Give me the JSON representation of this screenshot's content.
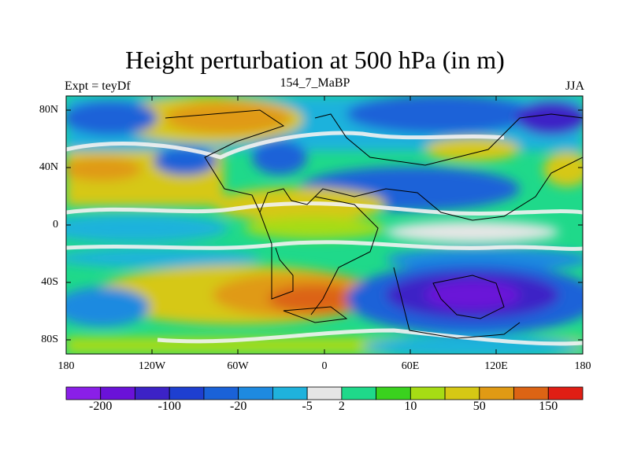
{
  "title": "Height perturbation at 500 hPa (in m)",
  "left_label": "Expt = teyDf",
  "center_label": "154_7_MaBP",
  "right_label": "JJA",
  "y_ticks": [
    "80N",
    "40N",
    "0",
    "40S",
    "80S"
  ],
  "x_ticks": [
    "180",
    "120W",
    "60W",
    "0",
    "60E",
    "120E",
    "180"
  ],
  "colorbar": {
    "colors": [
      "#8a1fe8",
      "#6a12d8",
      "#3c22c6",
      "#1e3fd0",
      "#1a62d8",
      "#1e8ae0",
      "#1fb2dc",
      "#e6e6e6",
      "#1fd98a",
      "#3ad21e",
      "#a6dc14",
      "#d6c814",
      "#e09a14",
      "#dc6414",
      "#e01e14"
    ],
    "labels": [
      {
        "text": "-200",
        "boundary": 1
      },
      {
        "text": "-100",
        "boundary": 3
      },
      {
        "text": "-20",
        "boundary": 5
      },
      {
        "text": "-5",
        "boundary": 7
      },
      {
        "text": "2",
        "boundary": 8
      },
      {
        "text": "10",
        "boundary": 10
      },
      {
        "text": "50",
        "boundary": 12
      },
      {
        "text": "150",
        "boundary": 14
      }
    ]
  }
}
